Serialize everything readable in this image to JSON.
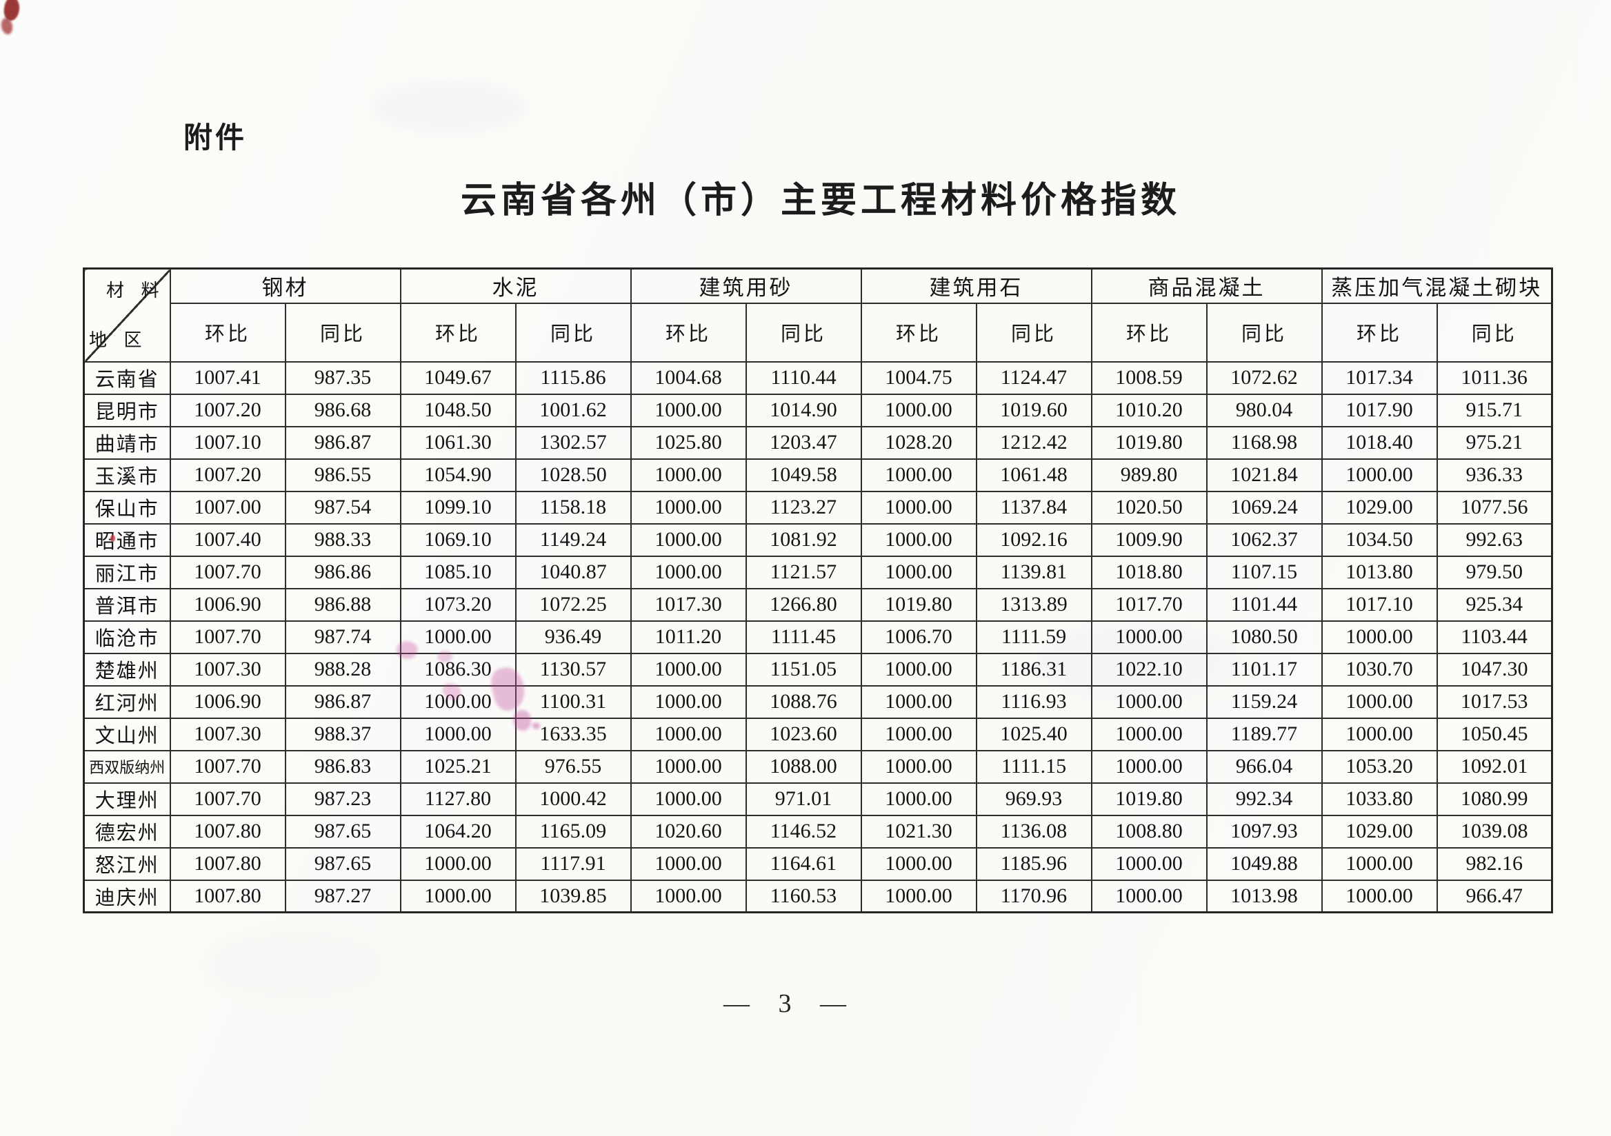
{
  "page": {
    "attachment_label": "附件",
    "title": "云南省各州（市）主要工程材料价格指数",
    "page_number": "— 3 —"
  },
  "table": {
    "corner": {
      "top_right": "材 料",
      "bottom_left": "地 区"
    },
    "material_groups": [
      {
        "label": "钢材"
      },
      {
        "label": "水泥"
      },
      {
        "label": "建筑用砂"
      },
      {
        "label": "建筑用石"
      },
      {
        "label": "商品混凝土"
      },
      {
        "label": "蒸压加气混凝土砌块"
      }
    ],
    "sub_headers": [
      "环比",
      "同比"
    ],
    "rows": [
      {
        "region": "云南省",
        "values": [
          "1007.41",
          "987.35",
          "1049.67",
          "1115.86",
          "1004.68",
          "1110.44",
          "1004.75",
          "1124.47",
          "1008.59",
          "1072.62",
          "1017.34",
          "1011.36"
        ]
      },
      {
        "region": "昆明市",
        "values": [
          "1007.20",
          "986.68",
          "1048.50",
          "1001.62",
          "1000.00",
          "1014.90",
          "1000.00",
          "1019.60",
          "1010.20",
          "980.04",
          "1017.90",
          "915.71"
        ]
      },
      {
        "region": "曲靖市",
        "values": [
          "1007.10",
          "986.87",
          "1061.30",
          "1302.57",
          "1025.80",
          "1203.47",
          "1028.20",
          "1212.42",
          "1019.80",
          "1168.98",
          "1018.40",
          "975.21"
        ]
      },
      {
        "region": "玉溪市",
        "values": [
          "1007.20",
          "986.55",
          "1054.90",
          "1028.50",
          "1000.00",
          "1049.58",
          "1000.00",
          "1061.48",
          "989.80",
          "1021.84",
          "1000.00",
          "936.33"
        ]
      },
      {
        "region": "保山市",
        "values": [
          "1007.00",
          "987.54",
          "1099.10",
          "1158.18",
          "1000.00",
          "1123.27",
          "1000.00",
          "1137.84",
          "1020.50",
          "1069.24",
          "1029.00",
          "1077.56"
        ]
      },
      {
        "region": "昭通市",
        "values": [
          "1007.40",
          "988.33",
          "1069.10",
          "1149.24",
          "1000.00",
          "1081.92",
          "1000.00",
          "1092.16",
          "1009.90",
          "1062.37",
          "1034.50",
          "992.63"
        ]
      },
      {
        "region": "丽江市",
        "values": [
          "1007.70",
          "986.86",
          "1085.10",
          "1040.87",
          "1000.00",
          "1121.57",
          "1000.00",
          "1139.81",
          "1018.80",
          "1107.15",
          "1013.80",
          "979.50"
        ]
      },
      {
        "region": "普洱市",
        "values": [
          "1006.90",
          "986.88",
          "1073.20",
          "1072.25",
          "1017.30",
          "1266.80",
          "1019.80",
          "1313.89",
          "1017.70",
          "1101.44",
          "1017.10",
          "925.34"
        ]
      },
      {
        "region": "临沧市",
        "values": [
          "1007.70",
          "987.74",
          "1000.00",
          "936.49",
          "1011.20",
          "1111.45",
          "1006.70",
          "1111.59",
          "1000.00",
          "1080.50",
          "1000.00",
          "1103.44"
        ]
      },
      {
        "region": "楚雄州",
        "values": [
          "1007.30",
          "988.28",
          "1086.30",
          "1130.57",
          "1000.00",
          "1151.05",
          "1000.00",
          "1186.31",
          "1022.10",
          "1101.17",
          "1030.70",
          "1047.30"
        ]
      },
      {
        "region": "红河州",
        "values": [
          "1006.90",
          "986.87",
          "1000.00",
          "1100.31",
          "1000.00",
          "1088.76",
          "1000.00",
          "1116.93",
          "1000.00",
          "1159.24",
          "1000.00",
          "1017.53"
        ]
      },
      {
        "region": "文山州",
        "values": [
          "1007.30",
          "988.37",
          "1000.00",
          "1633.35",
          "1000.00",
          "1023.60",
          "1000.00",
          "1025.40",
          "1000.00",
          "1189.77",
          "1000.00",
          "1050.45"
        ]
      },
      {
        "region": "西双版纳州",
        "values": [
          "1007.70",
          "986.83",
          "1025.21",
          "976.55",
          "1000.00",
          "1088.00",
          "1000.00",
          "1111.15",
          "1000.00",
          "966.04",
          "1053.20",
          "1092.01"
        ]
      },
      {
        "region": "大理州",
        "values": [
          "1007.70",
          "987.23",
          "1127.80",
          "1000.42",
          "1000.00",
          "971.01",
          "1000.00",
          "969.93",
          "1019.80",
          "992.34",
          "1033.80",
          "1080.99"
        ]
      },
      {
        "region": "德宏州",
        "values": [
          "1007.80",
          "987.65",
          "1064.20",
          "1165.09",
          "1020.60",
          "1146.52",
          "1021.30",
          "1136.08",
          "1008.80",
          "1097.93",
          "1029.00",
          "1039.08"
        ]
      },
      {
        "region": "怒江州",
        "values": [
          "1007.80",
          "987.65",
          "1000.00",
          "1117.91",
          "1000.00",
          "1164.61",
          "1000.00",
          "1185.96",
          "1000.00",
          "1049.88",
          "1000.00",
          "982.16"
        ]
      },
      {
        "region": "迪庆州",
        "values": [
          "1007.80",
          "987.27",
          "1000.00",
          "1039.85",
          "1000.00",
          "1160.53",
          "1000.00",
          "1170.96",
          "1000.00",
          "1013.98",
          "1000.00",
          "966.47"
        ]
      }
    ]
  }
}
